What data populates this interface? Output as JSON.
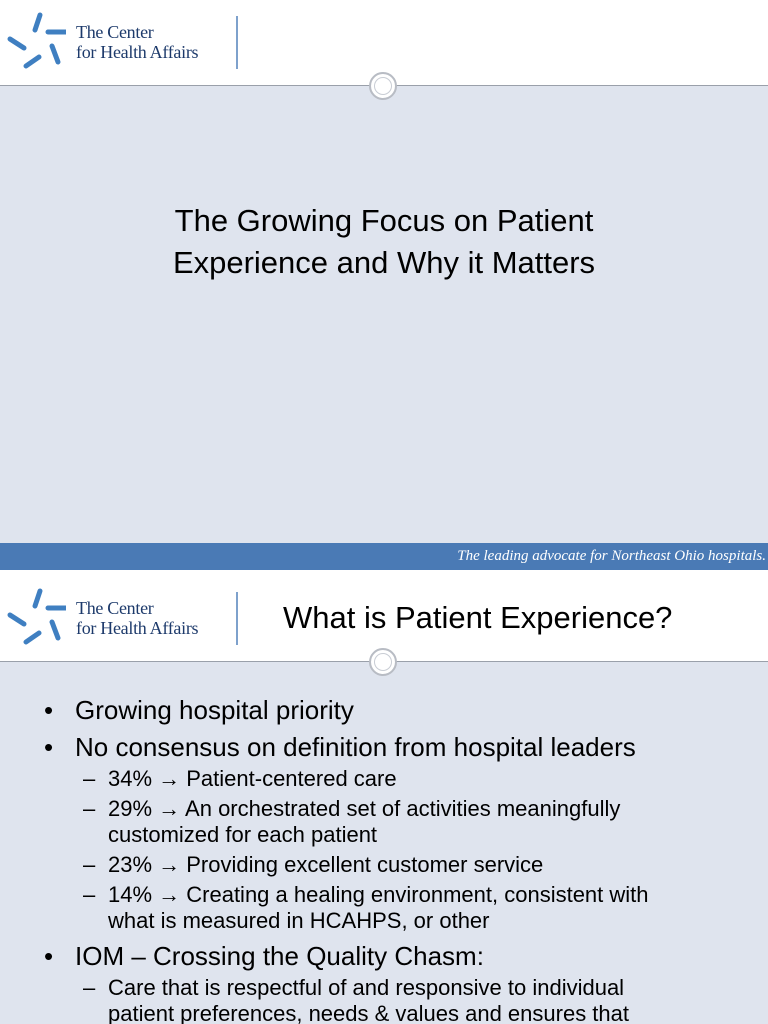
{
  "slides": [
    {
      "logo": {
        "line1": "The Center",
        "line2": "for Health Affairs"
      },
      "title": "The Growing Focus on Patient Experience and Why it Matters",
      "tagline": "The leading advocate for Northeast Ohio hospitals."
    },
    {
      "logo": {
        "line1": "The Center",
        "line2": "for Health Affairs"
      },
      "title": "What is Patient Experience?",
      "bullets": [
        {
          "text": "Growing hospital priority"
        },
        {
          "text": "No consensus on definition from hospital leaders",
          "sub": [
            "34% → Patient-centered care",
            "29% → An orchestrated set of activities meaningfully customized for each patient",
            "23% → Providing excellent customer service",
            "14% → Creating a healing environment, consistent with what is measured in HCAHPS, or other"
          ]
        },
        {
          "text": "IOM – Crossing the Quality Chasm:",
          "sub": [
            "Care that is respectful of and responsive to individual patient preferences, needs & values and ensures that"
          ]
        }
      ]
    }
  ]
}
